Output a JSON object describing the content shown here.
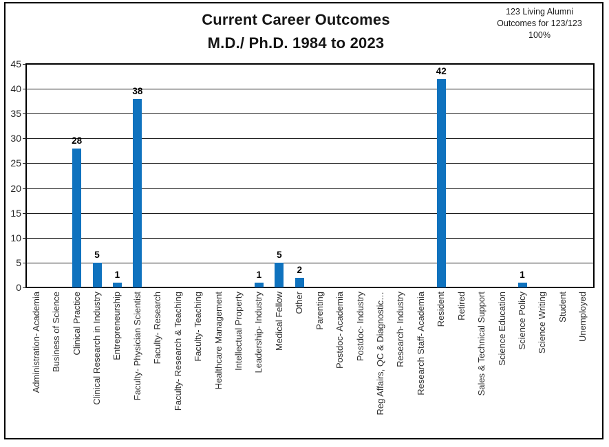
{
  "header": {
    "title_line1": "Current Career Outcomes",
    "title_line2": "M.D./ Ph.D. 1984 to 2023",
    "note_line1": "123 Living Alumni",
    "note_line2": "Outcomes for 123/123",
    "note_line3": "100%"
  },
  "chart_data": {
    "type": "bar",
    "title": "Current Career Outcomes M.D./ Ph.D. 1984 to 2023",
    "annotation": "123 Living Alumni Outcomes for 123/123 100%",
    "categories": [
      "Administration- Academia",
      "Business of Science",
      "Clinical Practice",
      "Clinical Research in Industry",
      "Entrepreneurship",
      "Faculty- Physician Scientist",
      "Faculty- Research",
      "Faculty- Research & Teaching",
      "Faculty- Teaching",
      "Healthcare Management",
      "Intellectual Property",
      "Leadership- Industry",
      "Medical Fellow",
      "Other",
      "Parenting",
      "Postdoc- Academia",
      "Postdoc- Industry",
      "Reg Affairs, QC & Diagnostic…",
      "Research- Industry",
      "Research Staff- Academia",
      "Resident",
      "Retired",
      "Sales & Technical Support",
      "Science Education",
      "Science Policy",
      "Science Writing",
      "Student",
      "Unemployed"
    ],
    "values": [
      0,
      0,
      28,
      5,
      1,
      38,
      0,
      0,
      0,
      0,
      0,
      1,
      5,
      2,
      0,
      0,
      0,
      0,
      0,
      0,
      42,
      0,
      0,
      0,
      1,
      0,
      0,
      0
    ],
    "xlabel": "",
    "ylabel": "",
    "ylim": [
      0,
      45
    ],
    "yticks": [
      0,
      5,
      10,
      15,
      20,
      25,
      30,
      35,
      40,
      45
    ],
    "grid": true,
    "grid_color": "#1c1c1c",
    "bar_color": "#0F72BE",
    "legend": "none",
    "value_labels": "shown above non-zero bars"
  }
}
